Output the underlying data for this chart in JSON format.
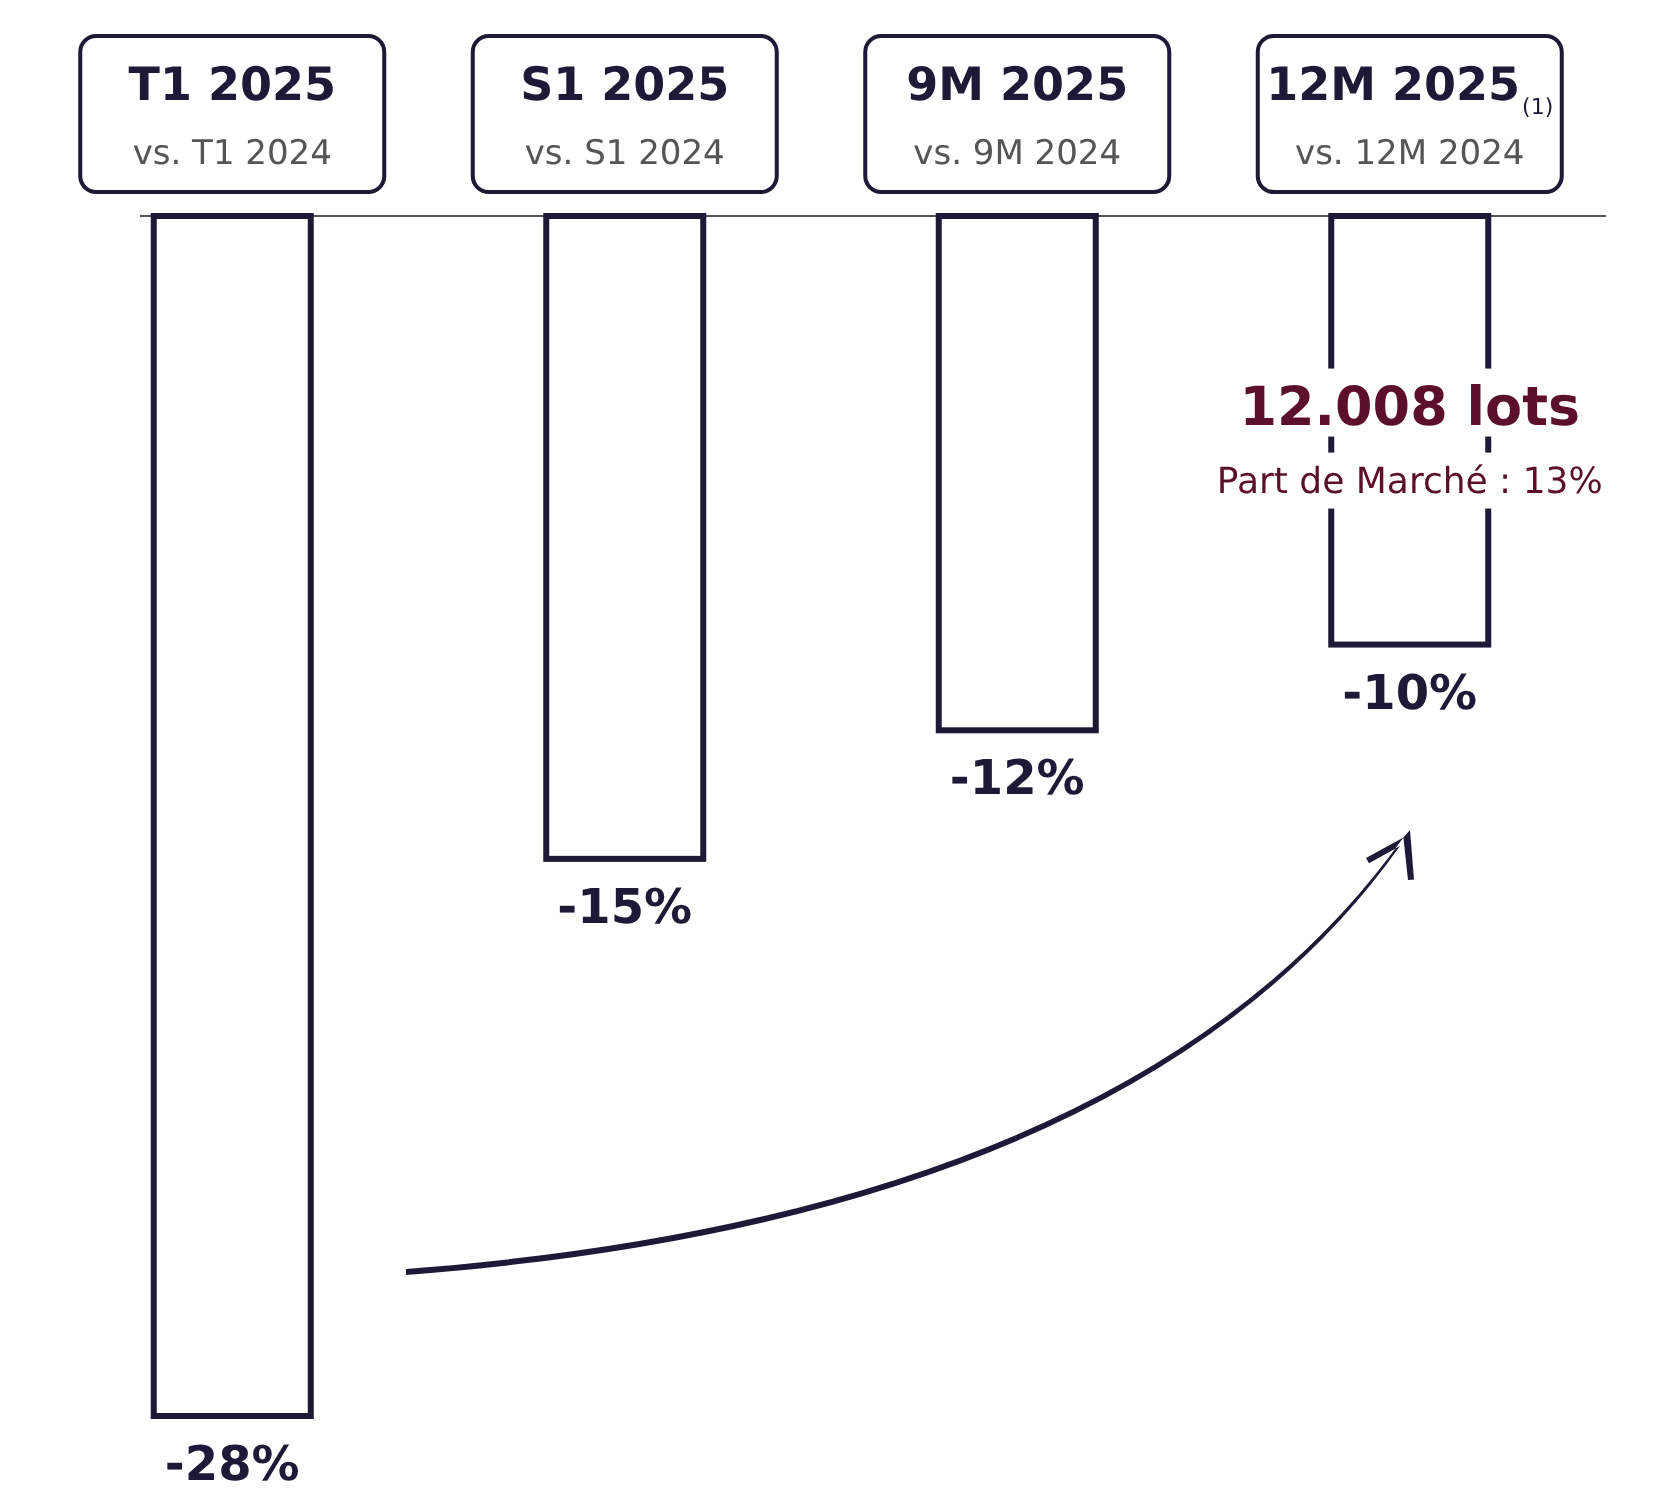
{
  "chart_data": {
    "type": "bar",
    "categories": [
      "T1 2025\nvs. T1 2024",
      "S1 2025\nvs. S1 2024",
      "9M 2025\nvs. 9M 2024",
      "12M 2025$_{(1)}$\nvs. 12M 2024"
    ],
    "values": [
      -28,
      -15,
      -12,
      -10
    ],
    "value_labels": [
      "-28%",
      "-15%",
      "-12%",
      "-10%"
    ],
    "color": "#ffffff",
    "annotations": [
      "12.008 lots",
      "Part de Marché : 13%"
    ]
  }
}
